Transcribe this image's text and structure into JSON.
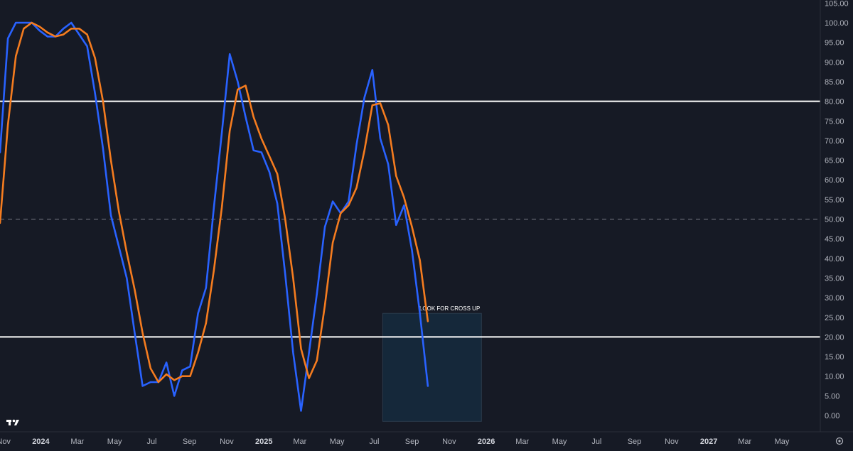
{
  "chart_data": {
    "type": "line",
    "ylim": [
      -5,
      105
    ],
    "y_ticks": [
      "105.00",
      "100.00",
      "95.00",
      "90.00",
      "85.00",
      "80.00",
      "75.00",
      "70.00",
      "65.00",
      "60.00",
      "55.00",
      "50.00",
      "45.00",
      "40.00",
      "35.00",
      "30.00",
      "25.00",
      "20.00",
      "15.00",
      "10.00",
      "5.00",
      "0.00"
    ],
    "y_tick_values": [
      105,
      100,
      95,
      90,
      85,
      80,
      75,
      70,
      65,
      60,
      55,
      50,
      45,
      40,
      35,
      30,
      25,
      20,
      15,
      10,
      5,
      0
    ],
    "x_ticks": [
      {
        "label": "Nov",
        "date": "2023-11-01",
        "bold": false
      },
      {
        "label": "2024",
        "date": "2024-01-01",
        "bold": true
      },
      {
        "label": "Mar",
        "date": "2024-03-01",
        "bold": false
      },
      {
        "label": "May",
        "date": "2024-05-01",
        "bold": false
      },
      {
        "label": "Jul",
        "date": "2024-07-01",
        "bold": false
      },
      {
        "label": "Sep",
        "date": "2024-09-01",
        "bold": false
      },
      {
        "label": "Nov",
        "date": "2024-11-01",
        "bold": false
      },
      {
        "label": "2025",
        "date": "2025-01-01",
        "bold": true
      },
      {
        "label": "Mar",
        "date": "2025-03-01",
        "bold": false
      },
      {
        "label": "May",
        "date": "2025-05-01",
        "bold": false
      },
      {
        "label": "Jul",
        "date": "2025-07-01",
        "bold": false
      },
      {
        "label": "Sep",
        "date": "2025-09-01",
        "bold": false
      },
      {
        "label": "Nov",
        "date": "2025-11-01",
        "bold": false
      },
      {
        "label": "2026",
        "date": "2026-01-01",
        "bold": true
      },
      {
        "label": "Mar",
        "date": "2026-03-01",
        "bold": false
      },
      {
        "label": "May",
        "date": "2026-05-01",
        "bold": false
      },
      {
        "label": "Jul",
        "date": "2026-07-01",
        "bold": false
      },
      {
        "label": "Sep",
        "date": "2026-09-01",
        "bold": false
      },
      {
        "label": "Nov",
        "date": "2026-11-01",
        "bold": false
      },
      {
        "label": "2027",
        "date": "2027-01-01",
        "bold": true
      },
      {
        "label": "Mar",
        "date": "2027-03-01",
        "bold": false
      },
      {
        "label": "May",
        "date": "2027-05-01",
        "bold": false
      }
    ],
    "x_range": [
      "2023-10-26",
      "2027-07-03"
    ],
    "reference_lines": [
      {
        "value": 80,
        "style": "solid",
        "color": "#ffffff"
      },
      {
        "value": 50,
        "style": "dashed",
        "color": "#787b86"
      },
      {
        "value": 20,
        "style": "solid",
        "color": "#ffffff"
      }
    ],
    "series": [
      {
        "color": "#2962ff",
        "points": [
          [
            "2023-10-26",
            67
          ],
          [
            "2023-11-08",
            96
          ],
          [
            "2023-11-21",
            100
          ],
          [
            "2023-12-04",
            100
          ],
          [
            "2023-12-17",
            100
          ],
          [
            "2023-12-30",
            98
          ],
          [
            "2024-01-12",
            96.5
          ],
          [
            "2024-01-25",
            96.5
          ],
          [
            "2024-02-07",
            98.5
          ],
          [
            "2024-02-20",
            100
          ],
          [
            "2024-03-04",
            97
          ],
          [
            "2024-03-17",
            94
          ],
          [
            "2024-03-30",
            82
          ],
          [
            "2024-04-12",
            68
          ],
          [
            "2024-04-25",
            51
          ],
          [
            "2024-05-08",
            43
          ],
          [
            "2024-05-21",
            35
          ],
          [
            "2024-06-03",
            21
          ],
          [
            "2024-06-16",
            7.5
          ],
          [
            "2024-06-29",
            8.5
          ],
          [
            "2024-07-12",
            8.5
          ],
          [
            "2024-07-25",
            13.5
          ],
          [
            "2024-08-07",
            5
          ],
          [
            "2024-08-20",
            11.5
          ],
          [
            "2024-09-02",
            12.5
          ],
          [
            "2024-09-15",
            26
          ],
          [
            "2024-09-28",
            32.5
          ],
          [
            "2024-10-11",
            53
          ],
          [
            "2024-10-24",
            72
          ],
          [
            "2024-11-06",
            92
          ],
          [
            "2024-11-19",
            85
          ],
          [
            "2024-12-02",
            76
          ],
          [
            "2024-12-15",
            67.5
          ],
          [
            "2024-12-28",
            67
          ],
          [
            "2025-01-10",
            62
          ],
          [
            "2025-01-23",
            54
          ],
          [
            "2025-02-05",
            36
          ],
          [
            "2025-02-18",
            16
          ],
          [
            "2025-03-03",
            1.2
          ],
          [
            "2025-03-16",
            16
          ],
          [
            "2025-03-29",
            31
          ],
          [
            "2025-04-11",
            48
          ],
          [
            "2025-04-24",
            54.5
          ],
          [
            "2025-05-07",
            51.5
          ],
          [
            "2025-05-20",
            54.5
          ],
          [
            "2025-06-02",
            69
          ],
          [
            "2025-06-15",
            81
          ],
          [
            "2025-06-28",
            88
          ],
          [
            "2025-07-11",
            70.5
          ],
          [
            "2025-07-24",
            64
          ],
          [
            "2025-08-06",
            48.5
          ],
          [
            "2025-08-19",
            53.5
          ],
          [
            "2025-09-01",
            42
          ],
          [
            "2025-09-14",
            26
          ],
          [
            "2025-09-27",
            7.5
          ]
        ]
      },
      {
        "color": "#f57c1f",
        "points": [
          [
            "2023-10-26",
            49
          ],
          [
            "2023-11-08",
            74
          ],
          [
            "2023-11-21",
            91.5
          ],
          [
            "2023-12-04",
            98.5
          ],
          [
            "2023-12-17",
            100
          ],
          [
            "2023-12-30",
            99
          ],
          [
            "2024-01-12",
            97.5
          ],
          [
            "2024-01-25",
            96.5
          ],
          [
            "2024-02-07",
            97
          ],
          [
            "2024-02-20",
            98.5
          ],
          [
            "2024-03-04",
            98.5
          ],
          [
            "2024-03-17",
            97
          ],
          [
            "2024-03-30",
            91
          ],
          [
            "2024-04-12",
            80
          ],
          [
            "2024-04-25",
            65
          ],
          [
            "2024-05-08",
            52
          ],
          [
            "2024-05-21",
            41.5
          ],
          [
            "2024-06-03",
            32
          ],
          [
            "2024-06-16",
            21
          ],
          [
            "2024-06-29",
            12
          ],
          [
            "2024-07-12",
            8.5
          ],
          [
            "2024-07-25",
            10.5
          ],
          [
            "2024-08-07",
            9
          ],
          [
            "2024-08-20",
            10
          ],
          [
            "2024-09-02",
            10
          ],
          [
            "2024-09-15",
            16
          ],
          [
            "2024-09-28",
            23.5
          ],
          [
            "2024-10-11",
            37
          ],
          [
            "2024-10-24",
            53
          ],
          [
            "2024-11-06",
            72.5
          ],
          [
            "2024-11-19",
            83
          ],
          [
            "2024-12-02",
            84
          ],
          [
            "2024-12-15",
            76
          ],
          [
            "2024-12-28",
            70.5
          ],
          [
            "2025-01-10",
            66
          ],
          [
            "2025-01-23",
            61.5
          ],
          [
            "2025-02-05",
            50
          ],
          [
            "2025-02-18",
            35
          ],
          [
            "2025-03-03",
            17
          ],
          [
            "2025-03-16",
            9.5
          ],
          [
            "2025-03-29",
            14
          ],
          [
            "2025-04-11",
            28
          ],
          [
            "2025-04-24",
            44
          ],
          [
            "2025-05-07",
            51.5
          ],
          [
            "2025-05-20",
            53.5
          ],
          [
            "2025-06-02",
            58
          ],
          [
            "2025-06-15",
            67.5
          ],
          [
            "2025-06-28",
            79
          ],
          [
            "2025-07-11",
            79.5
          ],
          [
            "2025-07-24",
            74
          ],
          [
            "2025-08-06",
            61
          ],
          [
            "2025-08-19",
            55.5
          ],
          [
            "2025-09-01",
            48
          ],
          [
            "2025-09-14",
            39.5
          ],
          [
            "2025-09-27",
            24
          ]
        ]
      }
    ],
    "annotations": [
      {
        "text": "LOOK FOR CROSS UP",
        "x_start": "2025-07-15",
        "x_end": "2025-12-24",
        "y_low": -1.5,
        "y_high": 26,
        "fill": "#15283a",
        "border": "#2b3b4c"
      }
    ],
    "logo": "tradingview-logo"
  }
}
